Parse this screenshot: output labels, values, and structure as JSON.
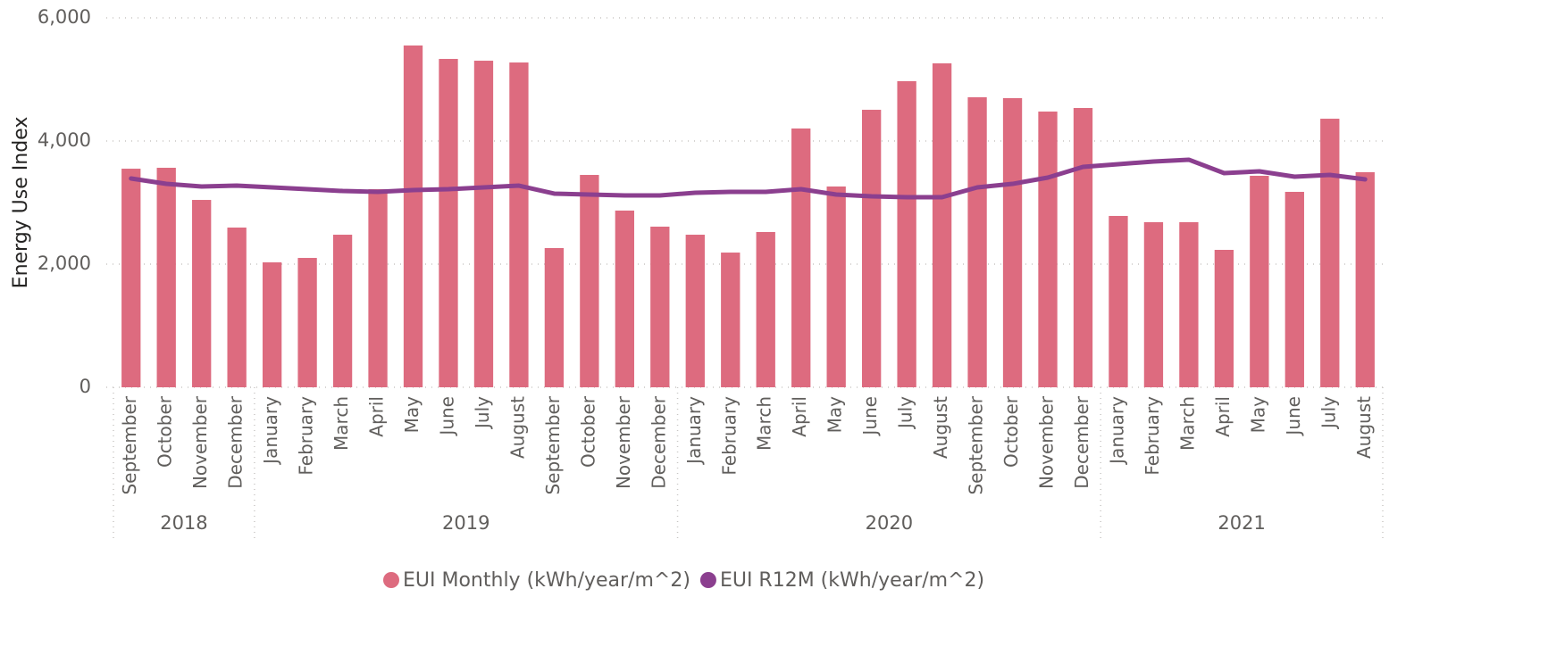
{
  "chart_data": {
    "type": "bar",
    "y_label": "Energy Use Index",
    "categories": [
      "September",
      "October",
      "November",
      "December",
      "January",
      "February",
      "March",
      "April",
      "May",
      "June",
      "July",
      "August",
      "September",
      "October",
      "November",
      "December",
      "January",
      "February",
      "March",
      "April",
      "May",
      "June",
      "July",
      "August",
      "September",
      "October",
      "November",
      "December",
      "January",
      "February",
      "March",
      "April",
      "May",
      "June",
      "July",
      "August"
    ],
    "category_years": [
      "2018",
      "2018",
      "2018",
      "2018",
      "2019",
      "2019",
      "2019",
      "2019",
      "2019",
      "2019",
      "2019",
      "2019",
      "2019",
      "2019",
      "2019",
      "2019",
      "2020",
      "2020",
      "2020",
      "2020",
      "2020",
      "2020",
      "2020",
      "2020",
      "2020",
      "2020",
      "2020",
      "2020",
      "2021",
      "2021",
      "2021",
      "2021",
      "2021",
      "2021",
      "2021",
      "2021"
    ],
    "series": [
      {
        "name": "EUI Monthly (kWh/year/m^2)",
        "type": "bar",
        "color": "#dd6b7f",
        "values": [
          3550,
          3565,
          3043,
          2594,
          2029,
          2101,
          2478,
          3217,
          5551,
          5333,
          5304,
          5275,
          2261,
          3449,
          2870,
          2609,
          2478,
          2188,
          2522,
          4203,
          3261,
          4507,
          4971,
          5261,
          4710,
          4696,
          4478,
          4536,
          2783,
          2681,
          2681,
          2232,
          3435,
          3174,
          4362,
          3493
        ]
      },
      {
        "name": "EUI R12M (kWh/year/m^2)",
        "type": "line",
        "color": "#8b3f8f",
        "values": [
          3391,
          3304,
          3261,
          3275,
          3246,
          3217,
          3188,
          3174,
          3203,
          3217,
          3246,
          3275,
          3145,
          3130,
          3116,
          3116,
          3159,
          3174,
          3174,
          3217,
          3130,
          3101,
          3087,
          3087,
          3246,
          3304,
          3406,
          3580,
          3623,
          3667,
          3696,
          3478,
          3507,
          3420,
          3449,
          3377
        ]
      }
    ],
    "ylim": [
      0,
      6000
    ],
    "yticks": [
      0,
      {
        "value": 2000,
        "label": "2,000"
      },
      {
        "value": 4000,
        "label": "4,000"
      },
      {
        "value": 6000,
        "label": "6,000"
      }
    ],
    "grid": true,
    "legend": "bottom"
  }
}
